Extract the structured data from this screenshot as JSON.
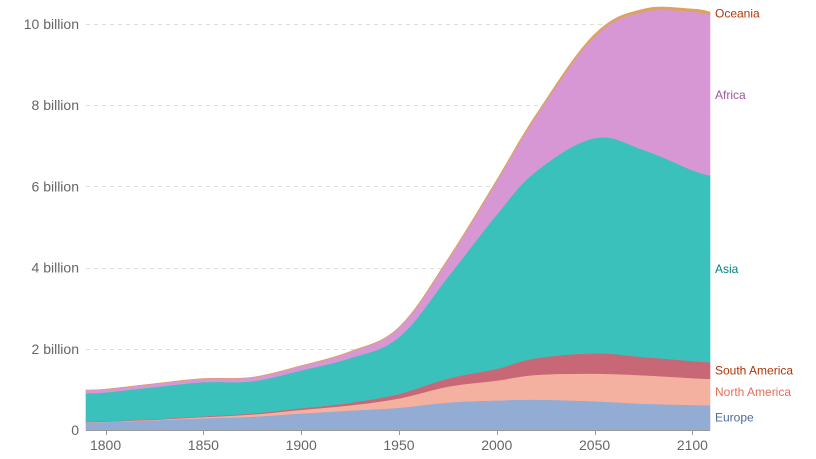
{
  "chart_data": {
    "type": "area",
    "stacked": true,
    "title": "",
    "xlabel": "",
    "ylabel": "",
    "x": [
      1790,
      1800,
      1825,
      1850,
      1875,
      1900,
      1925,
      1950,
      1975,
      2000,
      2020,
      2050,
      2075,
      2100,
      2109
    ],
    "xlim": [
      1790,
      2109
    ],
    "ylim": [
      0,
      10000000000
    ],
    "x_ticks": [
      {
        "value": 1800,
        "label": "1800"
      },
      {
        "value": 1850,
        "label": "1850"
      },
      {
        "value": 1900,
        "label": "1900"
      },
      {
        "value": 1950,
        "label": "1950"
      },
      {
        "value": 2000,
        "label": "2000"
      },
      {
        "value": 2050,
        "label": "2050"
      },
      {
        "value": 2100,
        "label": "2100"
      }
    ],
    "y_ticks": [
      {
        "value": 0,
        "label": "0"
      },
      {
        "value": 2000000000,
        "label": "2 billion"
      },
      {
        "value": 4000000000,
        "label": "4 billion"
      },
      {
        "value": 6000000000,
        "label": "6 billion"
      },
      {
        "value": 8000000000,
        "label": "8 billion"
      },
      {
        "value": 10000000000,
        "label": "10 billion"
      }
    ],
    "grid": true,
    "series": [
      {
        "name": "Europe",
        "color": "#93acd3",
        "label_color": "#4c6a9c",
        "values": [
          190000000,
          200000000,
          240000000,
          290000000,
          330000000,
          410000000,
          480000000,
          550000000,
          680000000,
          730000000,
          750000000,
          710000000,
          650000000,
          620000000,
          610000000
        ]
      },
      {
        "name": "North America",
        "color": "#f4b19f",
        "label_color": "#e56e5a",
        "values": [
          7000000,
          8000000,
          15000000,
          30000000,
          55000000,
          90000000,
          130000000,
          230000000,
          390000000,
          490000000,
          610000000,
          680000000,
          700000000,
          660000000,
          650000000
        ]
      },
      {
        "name": "South America",
        "color": "#c86877",
        "label_color": "#b13507",
        "values": [
          10000000,
          11000000,
          14000000,
          19000000,
          27000000,
          39000000,
          63000000,
          110000000,
          200000000,
          290000000,
          410000000,
          500000000,
          450000000,
          420000000,
          410000000
        ]
      },
      {
        "name": "Asia",
        "color": "#3bc1bb",
        "label_color": "#00847e",
        "values": [
          700000000,
          710000000,
          790000000,
          840000000,
          790000000,
          930000000,
          1100000000,
          1400000000,
          2500000000,
          3800000000,
          4600000000,
          5300000000,
          5100000000,
          4700000000,
          4600000000
        ]
      },
      {
        "name": "Africa",
        "color": "#d797d4",
        "label_color": "#a2559c",
        "values": [
          75000000,
          75000000,
          80000000,
          85000000,
          95000000,
          110000000,
          150000000,
          230000000,
          420000000,
          820000000,
          1350000000,
          2500000000,
          3400000000,
          3900000000,
          3960000000
        ]
      },
      {
        "name": "Oceania",
        "color": "#dda262",
        "label_color": "#b13507",
        "values": [
          2000000,
          2000000,
          2000000,
          2000000,
          2000000,
          6000000,
          9000000,
          13000000,
          21000000,
          31000000,
          43000000,
          57000000,
          66000000,
          68000000,
          68000000
        ]
      }
    ]
  }
}
